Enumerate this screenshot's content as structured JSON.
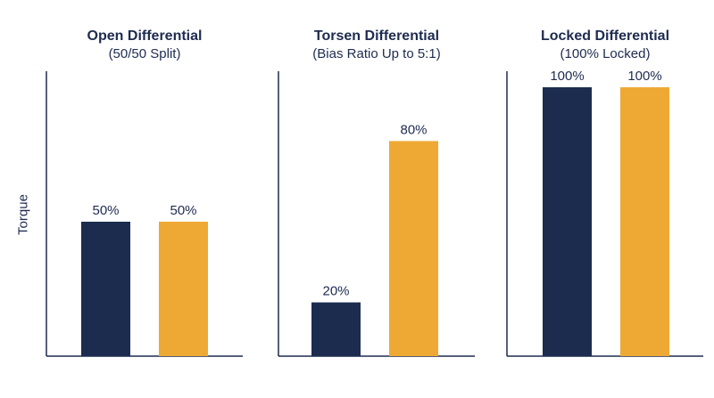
{
  "chart_data": {
    "type": "bar",
    "ylabel": "Torque",
    "panels": [
      {
        "title": "Open Differential",
        "subtitle": "(50/50 Split)",
        "series": [
          {
            "value": 50,
            "label": "50%",
            "color": "#1b2c4f"
          },
          {
            "value": 50,
            "label": "50%",
            "color": "#eea935"
          }
        ]
      },
      {
        "title": "Torsen Differential",
        "subtitle": "(Bias Ratio Up to 5:1)",
        "series": [
          {
            "value": 20,
            "label": "20%",
            "color": "#1b2c4f"
          },
          {
            "value": 80,
            "label": "80%",
            "color": "#eea935"
          }
        ]
      },
      {
        "title": "Locked Differential",
        "subtitle": "(100% Locked)",
        "series": [
          {
            "value": 100,
            "label": "100%",
            "color": "#1b2c4f"
          },
          {
            "value": 100,
            "label": "100%",
            "color": "#eea935"
          }
        ]
      }
    ],
    "ylim": [
      0,
      100
    ],
    "grid": false,
    "legend": "none"
  }
}
